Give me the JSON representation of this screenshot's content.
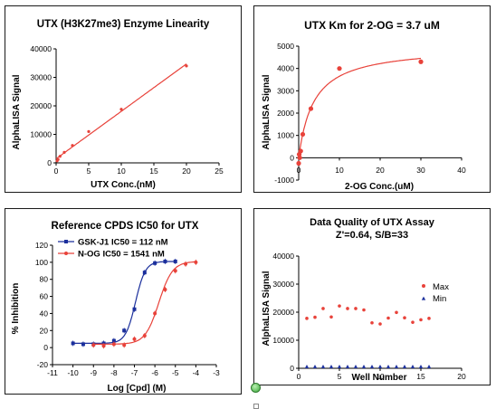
{
  "colors": {
    "red": "#e8423a",
    "blue": "#1b2f9c"
  },
  "chart_data": [
    {
      "type": "scatter",
      "title": "UTX (H3K27me3) Enzyme Linearity",
      "xlabel": "UTX Conc.(nM)",
      "ylabel": "AlphaLISA Signal",
      "xlim": [
        0,
        25
      ],
      "ylim": [
        0,
        40000
      ],
      "xticks": [
        "0",
        "5",
        "10",
        "15",
        "20",
        "25"
      ],
      "yticks": [
        "0",
        "10000",
        "20000",
        "30000",
        "40000"
      ],
      "grid": false,
      "series": [
        {
          "x": [
            0.15,
            0.3,
            0.6,
            1.25,
            2.5,
            5,
            10,
            20
          ],
          "y": [
            700,
            1200,
            2300,
            3700,
            6100,
            11000,
            18800,
            34000
          ],
          "fit": "linear"
        }
      ]
    },
    {
      "type": "scatter",
      "title": "UTX Km for 2-OG = 3.7 uM",
      "xlabel": "2-OG Conc.(uM)",
      "ylabel": "AlphaLISA Signal",
      "xlim": [
        0,
        40
      ],
      "ylim": [
        -1000,
        5000
      ],
      "xticks": [
        "0",
        "10",
        "20",
        "30",
        "40"
      ],
      "yticks": [
        "-1000",
        "0",
        "1000",
        "2000",
        "3000",
        "4000",
        "5000"
      ],
      "grid": false,
      "series": [
        {
          "x": [
            0,
            0.12,
            0.25,
            0.5,
            1,
            3,
            10,
            30
          ],
          "y": [
            -250,
            150,
            0,
            300,
            1050,
            2200,
            4000,
            4300
          ],
          "fit": "michaelis-menten",
          "Km": 3.7,
          "Vmax": 5000
        }
      ]
    },
    {
      "type": "scatter",
      "title": "Reference CPDS IC50 for UTX",
      "xlabel": "Log [Cpd] (M)",
      "ylabel": "% Inhibition",
      "xlim": [
        -11,
        -3
      ],
      "ylim": [
        -20,
        120
      ],
      "xticks": [
        "-11",
        "-10",
        "-9",
        "-8",
        "-7",
        "-6",
        "-5",
        "-4",
        "-3"
      ],
      "yticks": [
        "-20",
        "0",
        "20",
        "40",
        "60",
        "80",
        "100",
        "120"
      ],
      "grid": false,
      "legend_position": "top-left",
      "series": [
        {
          "name": "GSK-J1 IC50 = 112 nM",
          "x": [
            -10,
            -9.5,
            -9,
            -8.5,
            -8,
            -7.5,
            -7,
            -6.5,
            -6,
            -5.5,
            -5
          ],
          "y": [
            5,
            4,
            4,
            5,
            8,
            20,
            45,
            88,
            99,
            101,
            101
          ],
          "fit": "sigmoid",
          "logIC50": -6.95,
          "hill": 1.8,
          "bottom": 5,
          "top": 101
        },
        {
          "name": "N-OG IC50 = 1541 nM",
          "x": [
            -9,
            -8.5,
            -8,
            -7.5,
            -7,
            -6.5,
            -6,
            -5.5,
            -5,
            -4.5,
            -4
          ],
          "y": [
            3,
            2,
            4,
            3,
            10,
            14,
            40,
            68,
            90,
            98,
            100
          ],
          "fit": "sigmoid",
          "logIC50": -5.81,
          "hill": 1.3,
          "bottom": 4,
          "top": 101
        }
      ]
    },
    {
      "type": "scatter",
      "title": "Data Quality of UTX Assay",
      "subtitle": "Z'=0.64, S/B=33",
      "xlabel": "Well Number",
      "ylabel": "AlphaLISA Signal",
      "xlim": [
        0,
        20
      ],
      "ylim": [
        0,
        40000
      ],
      "xticks": [
        "0",
        "5",
        "10",
        "15",
        "20"
      ],
      "yticks": [
        "0",
        "10000",
        "20000",
        "30000",
        "40000"
      ],
      "grid": false,
      "legend_position": "right",
      "series": [
        {
          "name": "Max",
          "x": [
            1,
            2,
            3,
            4,
            5,
            6,
            7,
            8,
            9,
            10,
            11,
            12,
            13,
            14,
            15,
            16
          ],
          "y": [
            17800,
            18200,
            21300,
            18300,
            22200,
            21300,
            21300,
            20800,
            16200,
            15800,
            17900,
            19900,
            18000,
            16400,
            17300,
            17800
          ]
        },
        {
          "name": "Min",
          "x": [
            1,
            2,
            3,
            4,
            5,
            6,
            7,
            8,
            9,
            10,
            11,
            12,
            13,
            14,
            15,
            16
          ],
          "y": [
            500,
            500,
            500,
            500,
            500,
            500,
            500,
            500,
            500,
            500,
            500,
            500,
            500,
            500,
            500,
            500
          ]
        }
      ]
    }
  ]
}
